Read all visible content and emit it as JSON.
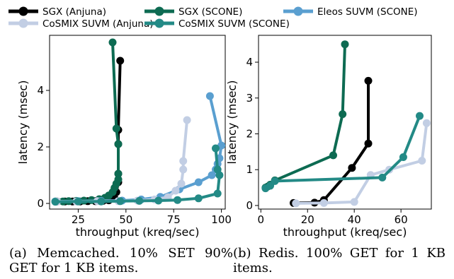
{
  "legend": {
    "entries": [
      {
        "label": "SGX (Anjuna)",
        "color": "#000000"
      },
      {
        "label": "SGX (SCONE)",
        "color": "#0d6b52"
      },
      {
        "label": "Eleos SUVM (SCONE)",
        "color": "#5a9fd0"
      },
      {
        "label": "CoSMIX SUVM (Anjuna)",
        "color": "#c2cee4"
      },
      {
        "label": "CoSMIX SUVM (SCONE)",
        "color": "#238a86"
      }
    ]
  },
  "captions": {
    "a": "(a) Memcached. 10% SET 90% GET for 1 KB items.",
    "b": "(b) Redis. 100% GET for 1 KB items."
  },
  "chart_data": [
    {
      "type": "line",
      "xlabel": "throughput (kreq/sec)",
      "ylabel": "latency (msec)",
      "xlim": [
        10,
        102
      ],
      "ylim": [
        -0.2,
        5.95
      ],
      "xticks": [
        25,
        50,
        75,
        100
      ],
      "yticks": [
        0,
        2,
        4
      ],
      "grid": false,
      "series": [
        {
          "name": "SGX (Anjuna)",
          "color": "#000000",
          "x": [
            14,
            18,
            22,
            26,
            30,
            34,
            38,
            41,
            44,
            45,
            46,
            46,
            46,
            46,
            47
          ],
          "y": [
            0.07,
            0.07,
            0.07,
            0.07,
            0.08,
            0.08,
            0.09,
            0.11,
            0.18,
            0.4,
            0.75,
            1.05,
            2.1,
            2.6,
            5.05
          ]
        },
        {
          "name": "SGX (SCONE)",
          "color": "#0d6b52",
          "x": [
            13,
            17,
            20,
            24,
            28,
            32,
            36,
            39,
            41,
            43,
            44,
            45,
            46,
            46,
            46,
            45,
            43
          ],
          "y": [
            0.07,
            0.07,
            0.08,
            0.09,
            0.1,
            0.12,
            0.15,
            0.2,
            0.28,
            0.4,
            0.55,
            0.7,
            0.85,
            1.05,
            2.1,
            2.65,
            5.7
          ]
        },
        {
          "name": "Eleos SUVM (SCONE)",
          "color": "#5a9fd0",
          "x": [
            13,
            25,
            37,
            48,
            58,
            68,
            78,
            88,
            95,
            97,
            98,
            99,
            100,
            94
          ],
          "y": [
            0.07,
            0.08,
            0.09,
            0.1,
            0.14,
            0.23,
            0.5,
            0.75,
            1.0,
            1.2,
            1.4,
            1.6,
            2.05,
            3.8
          ]
        },
        {
          "name": "CoSMIX SUVM (Anjuna)",
          "color": "#c2cee4",
          "x": [
            14,
            24,
            35,
            46,
            56,
            65,
            72,
            76,
            79,
            80,
            80,
            82
          ],
          "y": [
            0.07,
            0.07,
            0.08,
            0.08,
            0.1,
            0.14,
            0.22,
            0.45,
            0.7,
            1.2,
            1.5,
            2.95
          ]
        },
        {
          "name": "CoSMIX SUVM (SCONE)",
          "color": "#238a86",
          "x": [
            13,
            25,
            37,
            47,
            57,
            67,
            77,
            88,
            98,
            99,
            98,
            97
          ],
          "y": [
            0.06,
            0.07,
            0.07,
            0.08,
            0.09,
            0.1,
            0.12,
            0.18,
            0.35,
            1.0,
            1.2,
            1.95
          ]
        }
      ]
    },
    {
      "type": "line",
      "xlabel": "throughput (kreq/sec)",
      "ylabel": "latency (msec)",
      "xlim": [
        -1,
        73
      ],
      "ylim": [
        -0.1,
        4.75
      ],
      "xticks": [
        0,
        20,
        40,
        60
      ],
      "yticks": [
        0,
        1,
        2,
        3,
        4
      ],
      "grid": false,
      "series": [
        {
          "name": "SGX (Anjuna)",
          "color": "#000000",
          "x": [
            14,
            23,
            27,
            39,
            46,
            46
          ],
          "y": [
            0.07,
            0.08,
            0.15,
            1.05,
            1.73,
            3.48
          ]
        },
        {
          "name": "SGX (SCONE)",
          "color": "#0d6b52",
          "x": [
            2,
            3,
            4,
            6,
            31,
            35,
            36
          ],
          "y": [
            0.5,
            0.53,
            0.58,
            0.7,
            1.4,
            2.55,
            4.5
          ]
        },
        {
          "name": "CoSMIX SUVM (Anjuna)",
          "color": "#c2cee4",
          "x": [
            15,
            27,
            40,
            47,
            55,
            69,
            71
          ],
          "y": [
            0.06,
            0.07,
            0.1,
            0.85,
            1.0,
            1.25,
            2.3
          ]
        },
        {
          "name": "CoSMIX SUVM (SCONE)",
          "color": "#238a86",
          "x": [
            2,
            4,
            6,
            52,
            61,
            68
          ],
          "y": [
            0.48,
            0.55,
            0.68,
            0.78,
            1.35,
            2.5
          ]
        }
      ]
    }
  ]
}
